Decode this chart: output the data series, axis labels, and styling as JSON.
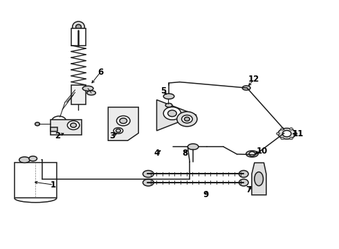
{
  "bg_color": "#ffffff",
  "line_color": "#1a1a1a",
  "fig_width": 4.9,
  "fig_height": 3.6,
  "dpi": 100,
  "labels": {
    "1": [
      0.155,
      0.255,
      0.095,
      0.272
    ],
    "2": [
      0.175,
      0.455,
      0.205,
      0.468
    ],
    "3": [
      0.34,
      0.455,
      0.355,
      0.468
    ],
    "4": [
      0.47,
      0.385,
      0.49,
      0.4
    ],
    "5": [
      0.49,
      0.62,
      0.503,
      0.605
    ],
    "6": [
      0.295,
      0.71,
      0.28,
      0.665
    ],
    "7": [
      0.735,
      0.248,
      0.74,
      0.268
    ],
    "8": [
      0.555,
      0.385,
      0.568,
      0.4
    ],
    "9": [
      0.61,
      0.218,
      0.615,
      0.238
    ],
    "10": [
      0.775,
      0.395,
      0.748,
      0.383
    ],
    "11": [
      0.88,
      0.46,
      0.854,
      0.463
    ],
    "12": [
      0.748,
      0.68,
      0.728,
      0.648
    ]
  }
}
